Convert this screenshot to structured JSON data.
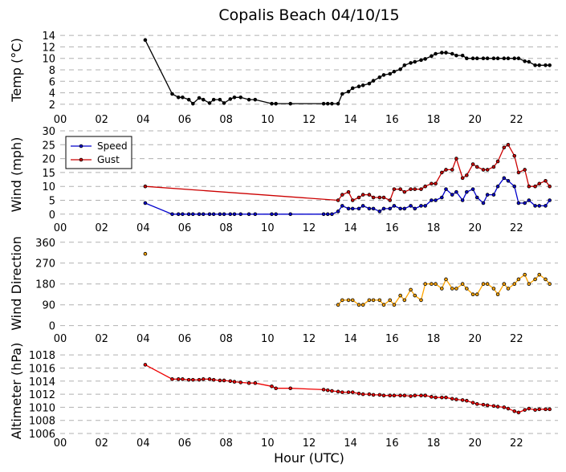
{
  "chart_data": {
    "title": "Copalis Beach 04/10/15",
    "xlabel": "Hour (UTC)",
    "xlim": [
      0,
      24
    ],
    "x_ticks": [
      0,
      2,
      4,
      6,
      8,
      10,
      12,
      14,
      16,
      18,
      20,
      22
    ],
    "x_tick_labels": [
      "00",
      "02",
      "04",
      "06",
      "08",
      "10",
      "12",
      "14",
      "16",
      "18",
      "20",
      "22"
    ],
    "grid": "horizontal dashed",
    "panels": [
      {
        "id": "temp",
        "type": "line",
        "ylabel": "Temp (°C)",
        "ylim": [
          1,
          15
        ],
        "y_ticks": [
          2,
          4,
          6,
          8,
          10,
          12,
          14
        ],
        "series": [
          {
            "color": "#000000",
            "x": [
              4.1,
              5.4,
              5.7,
              5.9,
              6.2,
              6.4,
              6.7,
              6.9,
              7.2,
              7.4,
              7.7,
              7.9,
              8.2,
              8.4,
              8.7,
              9.1,
              9.4,
              10.2,
              10.4,
              11.1,
              12.7,
              12.9,
              13.1,
              13.4,
              13.6,
              13.9,
              14.1,
              14.4,
              14.6,
              14.9,
              15.1,
              15.4,
              15.6,
              15.9,
              16.1,
              16.4,
              16.6,
              16.9,
              17.1,
              17.4,
              17.6,
              17.9,
              18.1,
              18.4,
              18.6,
              18.9,
              19.1,
              19.4,
              19.6,
              19.9,
              20.1,
              20.4,
              20.6,
              20.9,
              21.1,
              21.4,
              21.6,
              21.9,
              22.1,
              22.4,
              22.6,
              22.9,
              23.1,
              23.4,
              23.6
            ],
            "y": [
              13.2,
              3.8,
              3.2,
              3.2,
              2.8,
              2.1,
              3.1,
              2.8,
              2.2,
              2.8,
              2.8,
              2.2,
              2.9,
              3.2,
              3.2,
              2.8,
              2.8,
              2.1,
              2.1,
              2.1,
              2.1,
              2.1,
              2.1,
              2.1,
              3.8,
              4.2,
              4.8,
              5.1,
              5.3,
              5.6,
              6.1,
              6.7,
              7.1,
              7.3,
              7.7,
              8.1,
              8.8,
              9.2,
              9.4,
              9.7,
              9.9,
              10.4,
              10.8,
              11.0,
              11.0,
              10.8,
              10.5,
              10.5,
              10.0,
              10.0,
              10.0,
              10.0,
              10.0,
              10.0,
              10.0,
              10.0,
              10.0,
              10.0,
              10.0,
              9.5,
              9.4,
              8.8,
              8.8,
              8.8,
              8.8
            ]
          }
        ]
      },
      {
        "id": "wind",
        "type": "line",
        "ylabel": "Wind (mph)",
        "ylim": [
          -1.5,
          30
        ],
        "y_ticks": [
          0,
          5,
          10,
          15,
          20,
          25,
          30
        ],
        "legend": {
          "position": "upper-left"
        },
        "series": [
          {
            "name": "Speed",
            "color": "#0000cc",
            "x": [
              4.1,
              5.4,
              5.7,
              5.9,
              6.2,
              6.4,
              6.7,
              6.9,
              7.2,
              7.4,
              7.7,
              7.9,
              8.2,
              8.4,
              8.7,
              9.1,
              9.4,
              10.2,
              10.4,
              11.1,
              12.7,
              12.9,
              13.1,
              13.4,
              13.6,
              13.9,
              14.1,
              14.4,
              14.6,
              14.9,
              15.1,
              15.4,
              15.6,
              15.9,
              16.1,
              16.4,
              16.6,
              16.9,
              17.1,
              17.4,
              17.6,
              17.9,
              18.1,
              18.4,
              18.6,
              18.9,
              19.1,
              19.4,
              19.6,
              19.9,
              20.1,
              20.4,
              20.6,
              20.9,
              21.1,
              21.4,
              21.6,
              21.9,
              22.1,
              22.4,
              22.6,
              22.9,
              23.1,
              23.4,
              23.6
            ],
            "y": [
              4,
              0,
              0,
              0,
              0,
              0,
              0,
              0,
              0,
              0,
              0,
              0,
              0,
              0,
              0,
              0,
              0,
              0,
              0,
              0,
              0,
              0,
              0,
              1,
              3,
              2,
              2,
              2,
              3,
              2,
              2,
              1,
              2,
              2,
              3,
              2,
              2,
              3,
              2,
              3,
              3,
              5,
              5,
              6,
              9,
              7,
              8,
              5,
              8,
              9,
              6,
              4,
              7,
              7,
              10,
              13,
              12,
              10,
              4,
              4,
              5,
              3,
              3,
              3,
              5
            ]
          },
          {
            "name": "Gust",
            "color": "#cc0000",
            "x": [
              4.1,
              13.4,
              13.6,
              13.9,
              14.1,
              14.4,
              14.6,
              14.9,
              15.1,
              15.4,
              15.6,
              15.9,
              16.1,
              16.4,
              16.6,
              16.9,
              17.1,
              17.4,
              17.6,
              17.9,
              18.1,
              18.4,
              18.6,
              18.9,
              19.1,
              19.4,
              19.6,
              19.9,
              20.1,
              20.4,
              20.6,
              20.9,
              21.1,
              21.4,
              21.6,
              21.9,
              22.1,
              22.4,
              22.6,
              22.9,
              23.1,
              23.4,
              23.6
            ],
            "y": [
              10,
              5,
              7,
              8,
              5,
              6,
              7,
              7,
              6,
              6,
              6,
              5,
              9,
              9,
              8,
              9,
              9,
              9,
              10,
              11,
              11,
              15,
              16,
              16,
              20,
              13,
              14,
              18,
              17,
              16,
              16,
              17,
              19,
              24,
              25,
              21,
              15,
              16,
              10,
              10,
              11,
              12,
              10
            ]
          }
        ]
      },
      {
        "id": "direction",
        "type": "line",
        "ylabel": "Wind Direction",
        "ylim": [
          -15,
          380
        ],
        "y_ticks": [
          0,
          90,
          180,
          270,
          360
        ],
        "series": [
          {
            "color": "#ffa500",
            "x": [
              4.1
            ],
            "y": [
              310
            ],
            "markers_only": true
          },
          {
            "color": "#ffa500",
            "x": [
              13.4,
              13.6,
              13.9,
              14.1,
              14.4,
              14.6,
              14.9,
              15.1,
              15.4,
              15.6,
              15.9,
              16.1,
              16.4,
              16.6,
              16.9,
              17.1,
              17.4,
              17.6,
              17.9,
              18.1,
              18.4,
              18.6,
              18.9,
              19.1,
              19.4,
              19.6,
              19.9,
              20.1,
              20.4,
              20.6,
              20.9,
              21.1,
              21.4,
              21.6,
              21.9,
              22.1,
              22.4,
              22.6,
              22.9,
              23.1,
              23.4,
              23.6
            ],
            "y": [
              90,
              110,
              110,
              110,
              90,
              90,
              110,
              110,
              110,
              90,
              110,
              90,
              130,
              110,
              155,
              130,
              110,
              180,
              180,
              180,
              160,
              200,
              160,
              160,
              180,
              160,
              135,
              135,
              180,
              180,
              160,
              135,
              180,
              160,
              180,
              200,
              220,
              180,
              200,
              220,
              200,
              180
            ]
          }
        ]
      },
      {
        "id": "altimeter",
        "type": "line",
        "ylabel": "Altimeter (hPa)",
        "ylim": [
          1006,
          1019
        ],
        "y_ticks": [
          1006,
          1008,
          1010,
          1012,
          1014,
          1016,
          1018
        ],
        "series": [
          {
            "color": "#ee0000",
            "x": [
              4.1,
              5.4,
              5.7,
              5.9,
              6.2,
              6.4,
              6.7,
              6.9,
              7.2,
              7.4,
              7.7,
              7.9,
              8.2,
              8.4,
              8.7,
              9.1,
              9.4,
              10.2,
              10.4,
              11.1,
              12.7,
              12.9,
              13.1,
              13.4,
              13.6,
              13.9,
              14.1,
              14.4,
              14.6,
              14.9,
              15.1,
              15.4,
              15.6,
              15.9,
              16.1,
              16.4,
              16.6,
              16.9,
              17.1,
              17.4,
              17.6,
              17.9,
              18.1,
              18.4,
              18.6,
              18.9,
              19.1,
              19.4,
              19.6,
              19.9,
              20.1,
              20.4,
              20.6,
              20.9,
              21.1,
              21.4,
              21.6,
              21.9,
              22.1,
              22.4,
              22.6,
              22.9,
              23.1,
              23.4,
              23.6
            ],
            "y": [
              1016.5,
              1014.3,
              1014.3,
              1014.3,
              1014.2,
              1014.2,
              1014.2,
              1014.3,
              1014.3,
              1014.2,
              1014.1,
              1014.1,
              1014.0,
              1013.9,
              1013.8,
              1013.7,
              1013.7,
              1013.2,
              1012.9,
              1012.9,
              1012.7,
              1012.6,
              1012.5,
              1012.4,
              1012.3,
              1012.3,
              1012.3,
              1012.1,
              1012.0,
              1012.0,
              1011.9,
              1011.9,
              1011.8,
              1011.8,
              1011.8,
              1011.8,
              1011.8,
              1011.7,
              1011.8,
              1011.8,
              1011.8,
              1011.6,
              1011.5,
              1011.5,
              1011.5,
              1011.3,
              1011.2,
              1011.1,
              1011.0,
              1010.7,
              1010.5,
              1010.4,
              1010.3,
              1010.2,
              1010.1,
              1010.0,
              1009.8,
              1009.4,
              1009.2,
              1009.6,
              1009.8,
              1009.6,
              1009.7,
              1009.7,
              1009.7
            ]
          }
        ]
      }
    ]
  }
}
